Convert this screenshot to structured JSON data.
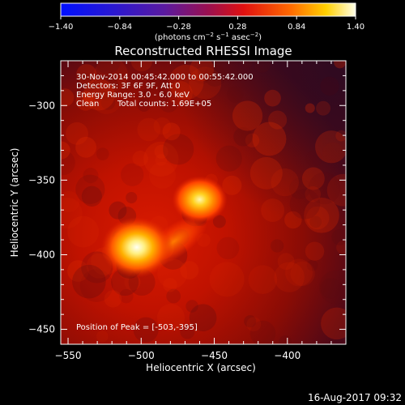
{
  "chart_data": {
    "type": "heatmap",
    "title": "Reconstructed RHESSI Image",
    "xlabel": "Heliocentric X (arcsec)",
    "ylabel": "Heliocentric Y (arcsec)",
    "xlim": [
      -555,
      -360
    ],
    "ylim": [
      -460,
      -270
    ],
    "x_ticks": [
      -550,
      -500,
      -450,
      -400
    ],
    "y_ticks": [
      -450,
      -400,
      -350,
      -300
    ],
    "x_tick_labels": [
      "−550",
      "−500",
      "−450",
      "−400"
    ],
    "y_tick_labels": [
      "−450",
      "−400",
      "−350",
      "−300"
    ],
    "colorbar": {
      "range": [
        -1.4,
        1.4
      ],
      "ticks": [
        -1.4,
        -0.84,
        -0.28,
        0.28,
        0.84,
        1.4
      ],
      "tick_labels": [
        "−1.40",
        "−0.84",
        "−0.28",
        "0.28",
        "0.84",
        "1.40"
      ],
      "unit_label": "(photons cm",
      "unit_exp1": "−2",
      "unit_mid": " s",
      "unit_exp2": "−1",
      "unit_mid2": " asec",
      "unit_exp3": "−2",
      "unit_end": ")"
    },
    "sources": [
      {
        "x": -503,
        "y": -395,
        "intensity": 1.4
      },
      {
        "x": -460,
        "y": -363,
        "intensity": 1.05
      }
    ],
    "annotations": {
      "time": "30-Nov-2014 00:45:42.000 to 00:55:42.000",
      "detectors": "Detectors: 3F 6F 9F, Att 0",
      "energy": "Energy Range: 3.0 - 6.0 keV",
      "method": "Clean",
      "counts": "Total counts: 1.69E+05",
      "peak": "Position of Peak = [-503,-395]"
    }
  },
  "footer": {
    "date": "16-Aug-2017 09:32"
  }
}
